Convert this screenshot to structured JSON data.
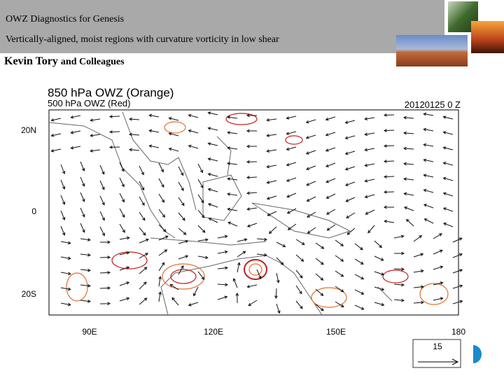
{
  "header": {
    "title": "OWZ Diagnostics for Genesis",
    "subtitle": "Vertically-aligned, moist regions with curvature vorticity in low shear"
  },
  "author": {
    "name": "Kevin Tory",
    "rest": "and Colleagues"
  },
  "map": {
    "title": "850 hPa OWZ (Orange)",
    "subtitle": "500 hPa OWZ (Red)",
    "time": "20120125 0 Z",
    "lat_labels": [
      "20N",
      "0",
      "20S"
    ],
    "lon_labels": [
      "90E",
      "120E",
      "150E",
      "180"
    ],
    "vector_reference": "15"
  }
}
